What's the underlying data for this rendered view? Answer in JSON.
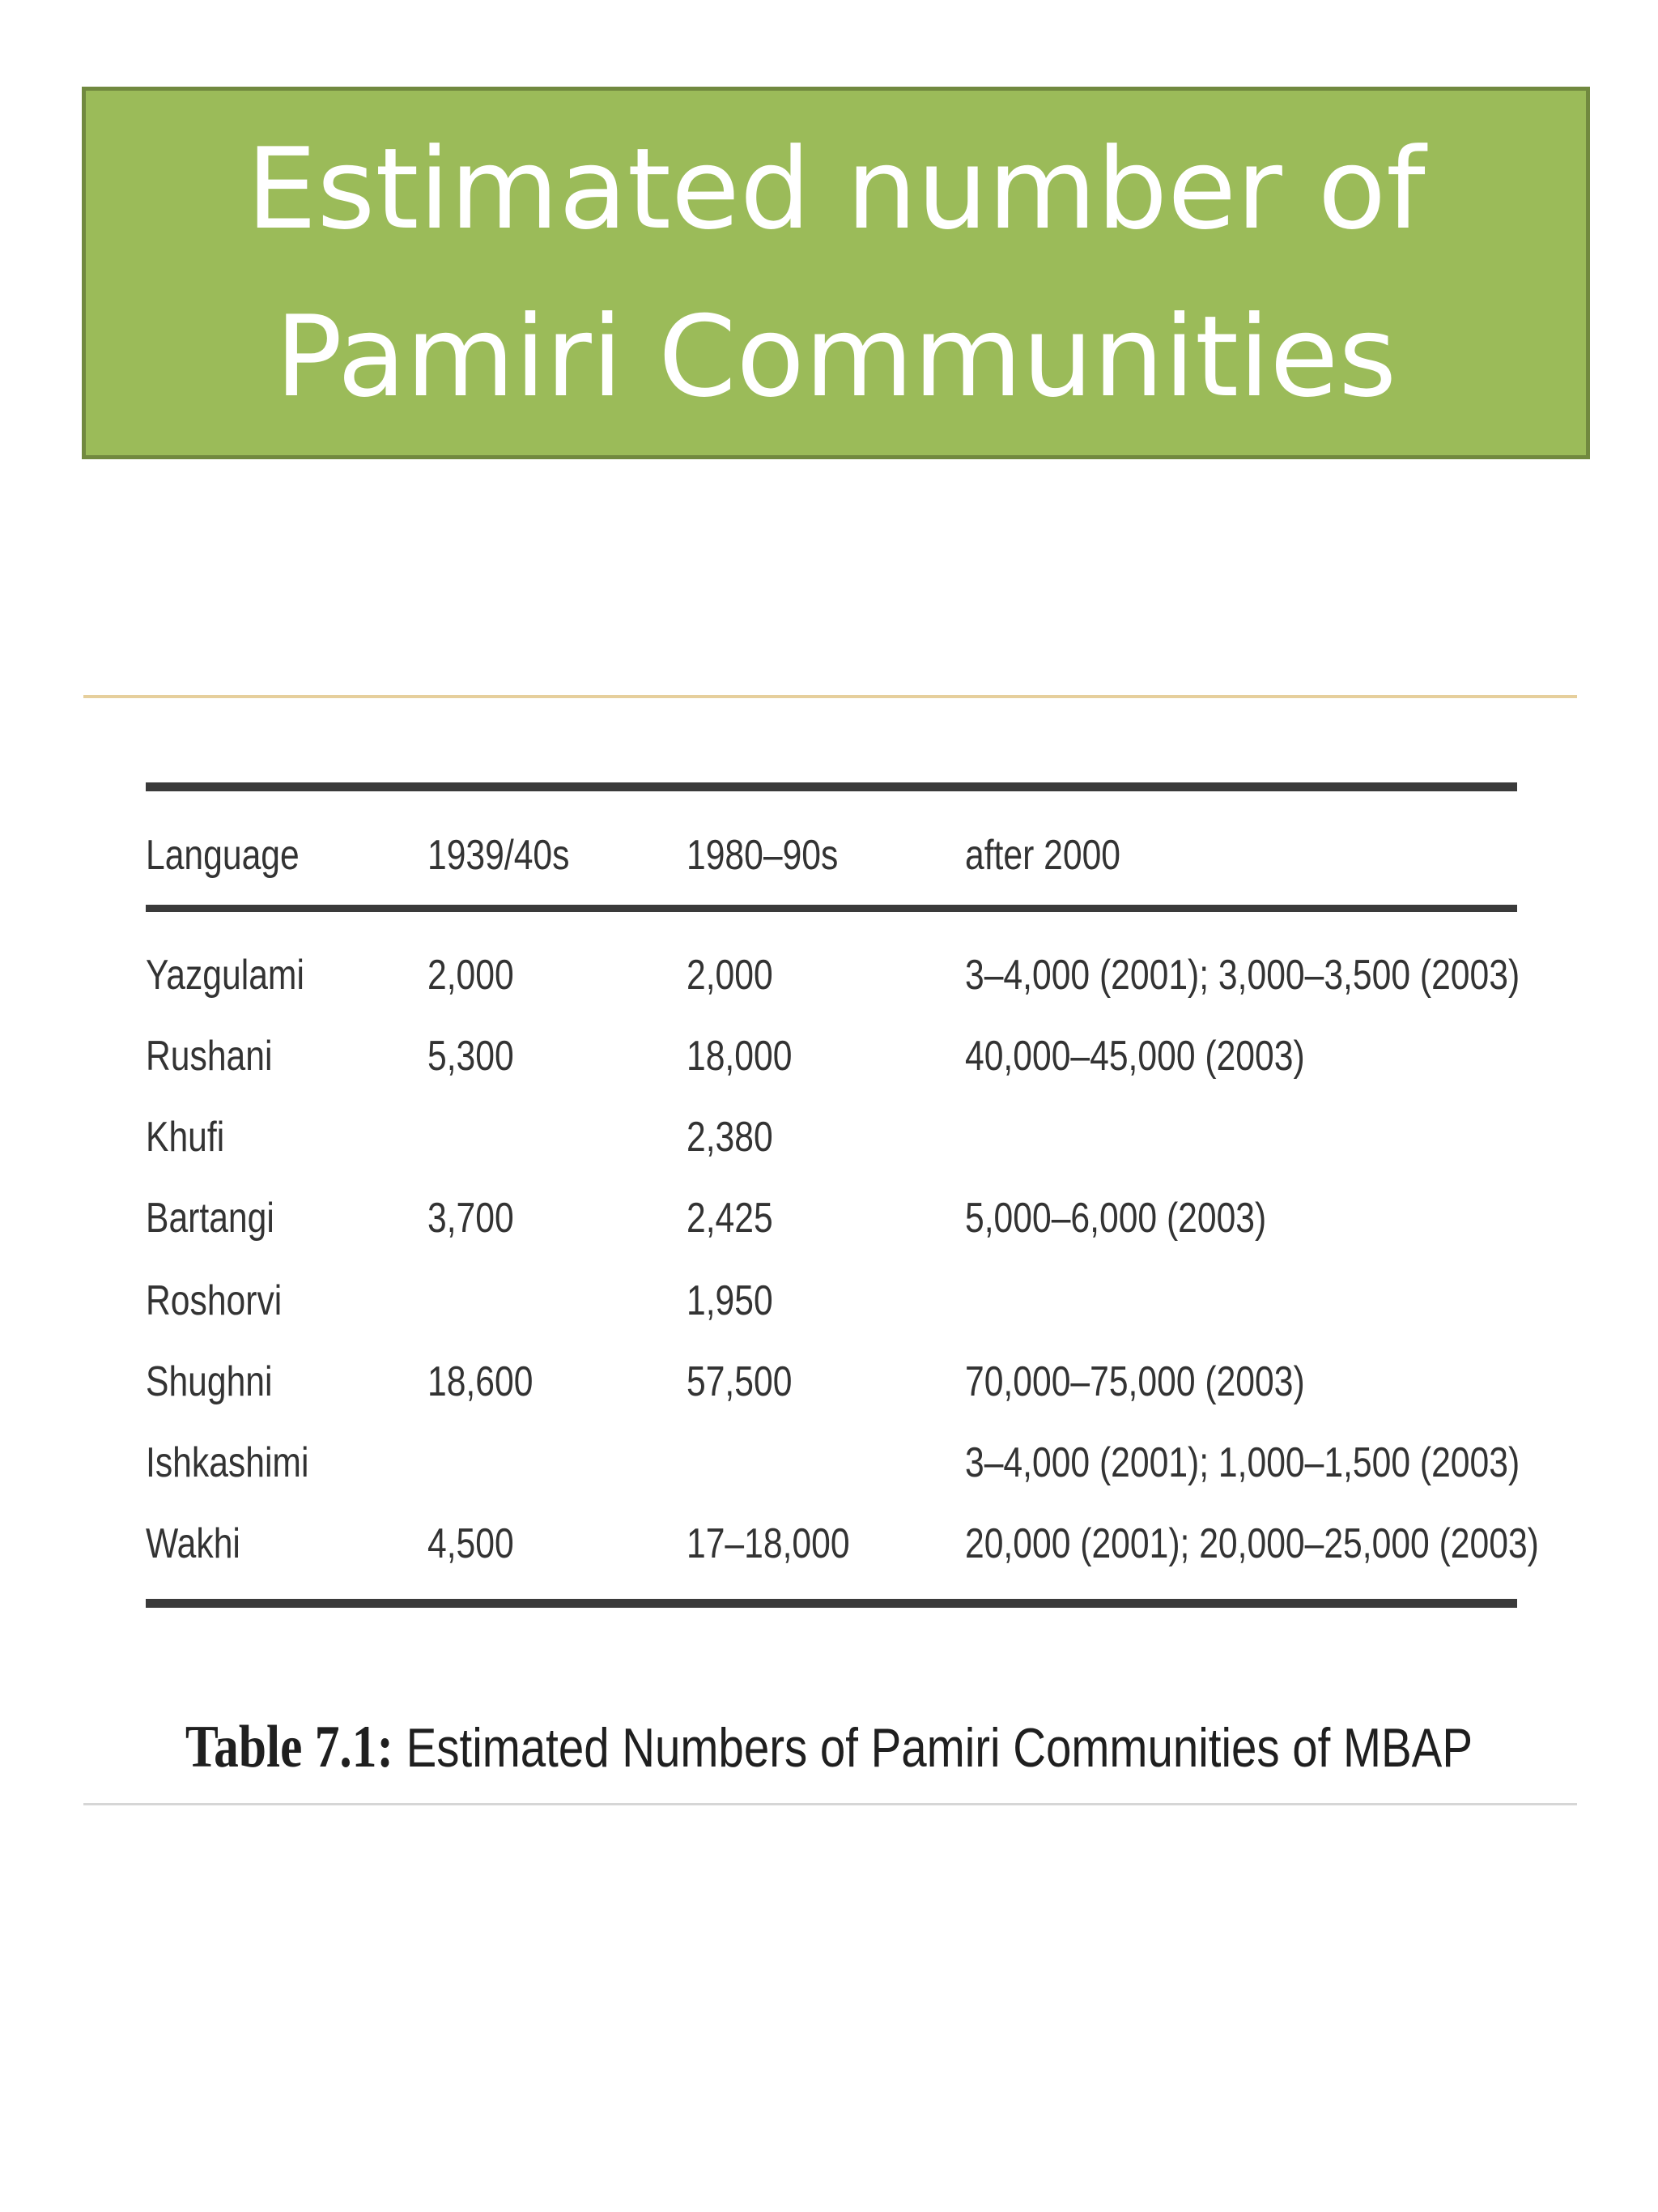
{
  "slide": {
    "title_line1": "Estimated number of",
    "title_line2": "Pamiri Communities"
  },
  "table": {
    "headers": [
      "Language",
      "1939/40s",
      "1980–90s",
      "after 2000"
    ],
    "rows": [
      [
        "Yazgulami",
        "2,000",
        "2,000",
        "3–4,000 (2001); 3,000–3,500 (2003)"
      ],
      [
        "Rushani",
        "5,300",
        "18,000",
        "40,000–45,000 (2003)"
      ],
      [
        "Khufi",
        "",
        "2,380",
        ""
      ],
      [
        "Bartangi",
        "3,700",
        "2,425",
        "5,000–6,000 (2003)"
      ],
      [
        "Roshorvi",
        "",
        "1,950",
        ""
      ],
      [
        "Shughni",
        "18,600",
        "57,500",
        "70,000–75,000 (2003)"
      ],
      [
        "Ishkashimi",
        "",
        "",
        "3–4,000 (2001);  1,000–1,500 (2003)"
      ],
      [
        "Wakhi",
        "4,500",
        "17–18,000",
        "20,000 (2001); 20,000–25,000 (2003)"
      ]
    ],
    "caption_label": "Table 7.1:",
    "caption_text": " Estimated Numbers of Pamiri Communities of MBAP"
  }
}
